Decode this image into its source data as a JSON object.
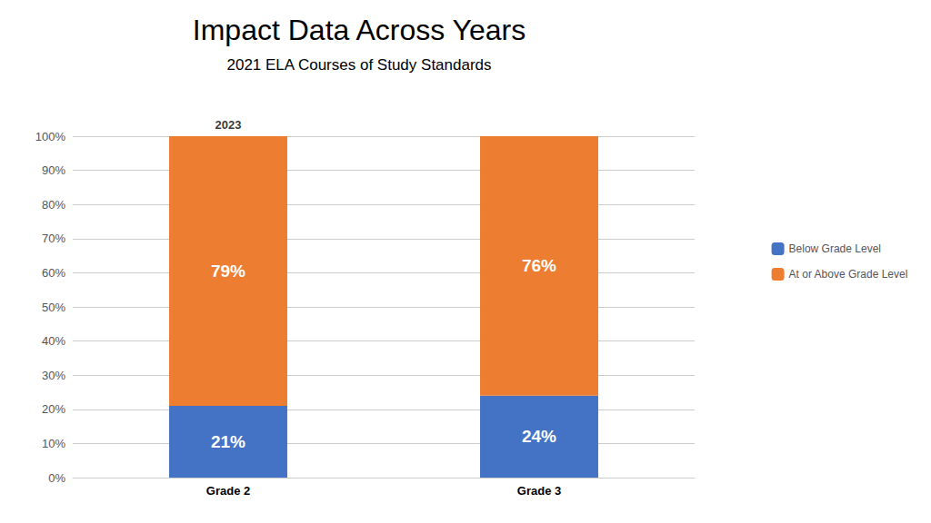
{
  "chart_data": {
    "type": "bar",
    "title": "Impact Data Across Years",
    "subtitle": "2021 ELA Courses of Study Standards",
    "categories": [
      "Grade 2",
      "Grade 3"
    ],
    "series": [
      {
        "name": "Below Grade Level",
        "color": "#4472C4",
        "values": [
          21,
          24
        ],
        "value_labels": [
          "21%",
          "24%"
        ]
      },
      {
        "name": "At or Above Grade Level",
        "color": "#ED7D31",
        "values": [
          79,
          76
        ],
        "value_labels": [
          "79%",
          "76%"
        ]
      }
    ],
    "stacked": true,
    "data_labels": true,
    "annotations": [
      {
        "text": "2023",
        "x": "Grade 2"
      }
    ],
    "ylim": [
      0,
      100
    ],
    "yticks": [
      {
        "value": 0,
        "label": "0%"
      },
      {
        "value": 10,
        "label": "10%"
      },
      {
        "value": 20,
        "label": "20%"
      },
      {
        "value": 30,
        "label": "30%"
      },
      {
        "value": 40,
        "label": "40%"
      },
      {
        "value": 50,
        "label": "50%"
      },
      {
        "value": 60,
        "label": "60%"
      },
      {
        "value": 70,
        "label": "70%"
      },
      {
        "value": 80,
        "label": "80%"
      },
      {
        "value": 90,
        "label": "90%"
      },
      {
        "value": 100,
        "label": "100%"
      }
    ],
    "grid": true,
    "legend": "right"
  }
}
